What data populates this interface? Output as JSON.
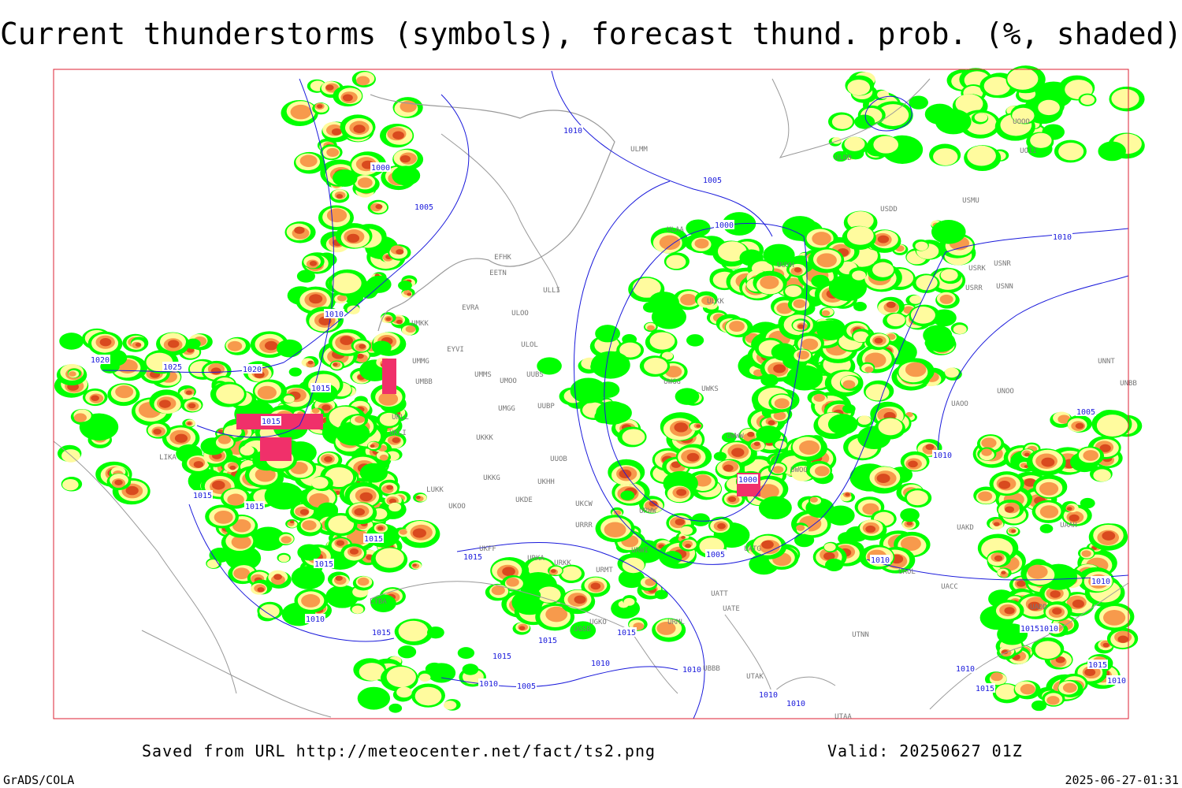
{
  "title": "Current thunderstorms (symbols), forecast thund. prob. (%, shaded)",
  "footer": {
    "saved_from": "Saved from URL http://meteocenter.net/fact/ts2.png",
    "valid": "Valid: 20250627 01Z",
    "software": "GrADS/COLA",
    "timestamp": "2025-06-27-01:31"
  },
  "isobar_labels": [
    "1000",
    "1005",
    "1010",
    "1020",
    "1025",
    "1020",
    "1015",
    "1015",
    "1015",
    "1015",
    "1015",
    "1015",
    "1010",
    "1015",
    "1015",
    "1015",
    "1015",
    "1010",
    "1005",
    "1015",
    "1010",
    "1010",
    "1010",
    "1010",
    "1010",
    "1005",
    "1000",
    "1000",
    "1005",
    "1010",
    "1010",
    "1005",
    "1010",
    "1010",
    "1015",
    "1010",
    "1015",
    "1010",
    "1015",
    "1010"
  ],
  "station_labels": [
    "ULMM",
    "ULDD",
    "UOOO",
    "UOII",
    "USMU",
    "USDD",
    "ULAA",
    "EFHK",
    "EETN",
    "ULLI",
    "UUYH",
    "USRK",
    "USNR",
    "USRR",
    "USNN",
    "ULKK",
    "EVRA",
    "ULOO",
    "UMKK",
    "EYVI",
    "UMMG",
    "UMMS",
    "UMOO",
    "UMBB",
    "ULOL",
    "UUBS",
    "UMGG",
    "UUBP",
    "UKLL",
    "UKLI",
    "UKKK",
    "UUOB",
    "LUKK",
    "UKKG",
    "UKOO",
    "UKDE",
    "UKHH",
    "UKCW",
    "URRR",
    "UKFF",
    "URKA",
    "URKK",
    "URMT",
    "URWI",
    "URWW",
    "UWGG",
    "UWKS",
    "UWWW",
    "UWOO",
    "UATG",
    "UATE",
    "UATT",
    "URML",
    "UGKO",
    "UGSB",
    "UBBB",
    "UTAK",
    "UTNN",
    "UTAA",
    "UAOL",
    "UACC",
    "UAKD",
    "UAAH",
    "UADD",
    "UNBB",
    "UNNT",
    "UNOO",
    "UAOO",
    "LIKA",
    "LTBA"
  ]
}
